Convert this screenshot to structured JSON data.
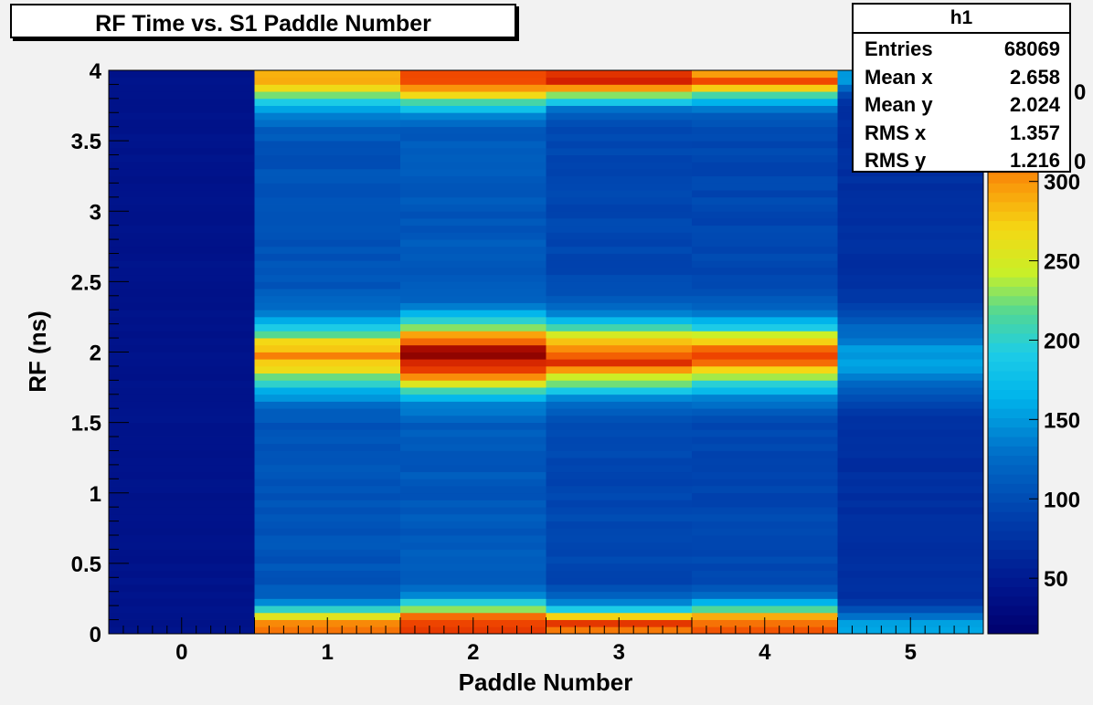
{
  "title": "RF Time vs. S1 Paddle Number",
  "stats": {
    "name": "h1",
    "rows": [
      {
        "label": "Entries",
        "value": "68069"
      },
      {
        "label": "Mean x",
        "value": "2.658"
      },
      {
        "label": "Mean y",
        "value": "2.024"
      },
      {
        "label": "RMS x",
        "value": "1.357"
      },
      {
        "label": "RMS y",
        "value": "1.216"
      }
    ]
  },
  "chart_data": {
    "type": "heatmap",
    "title": "RF Time vs. S1 Paddle Number",
    "xlabel": "Paddle Number",
    "ylabel": "RF (ns)",
    "x_categories": [
      "0",
      "1",
      "2",
      "3",
      "4",
      "5"
    ],
    "xlim": [
      -0.5,
      5.5
    ],
    "ylim": [
      0,
      4
    ],
    "y_ticks": [
      "0",
      "0.5",
      "1",
      "1.5",
      "2",
      "2.5",
      "3",
      "3.5",
      "4"
    ],
    "z_range": [
      15,
      370
    ],
    "z_ticks": [
      50,
      100,
      150,
      200,
      250,
      300
    ],
    "colorbar_visible_ticks": [
      "50",
      "100",
      "150",
      "200",
      "250",
      "300"
    ],
    "colorbar_partial_ticks": [
      "0",
      "0"
    ],
    "y_bin_width": 0.05,
    "profiles": {
      "0": {
        "base": 42,
        "peaks": []
      },
      "1": {
        "base": 105,
        "peaks": [
          {
            "y": 1.97,
            "height": 185,
            "width": 0.17
          },
          {
            "y": 0.05,
            "height": 210,
            "width": 0.1
          },
          {
            "y": 3.95,
            "height": 185,
            "width": 0.15
          }
        ]
      },
      "2": {
        "base": 110,
        "peaks": [
          {
            "y": 1.97,
            "height": 255,
            "width": 0.17
          },
          {
            "y": 0.05,
            "height": 230,
            "width": 0.12
          },
          {
            "y": 3.95,
            "height": 215,
            "width": 0.14
          }
        ]
      },
      "3": {
        "base": 95,
        "peaks": [
          {
            "y": 1.97,
            "height": 235,
            "width": 0.17
          },
          {
            "y": 0.05,
            "height": 230,
            "width": 0.1
          },
          {
            "y": 3.95,
            "height": 240,
            "width": 0.12
          }
        ]
      },
      "4": {
        "base": 95,
        "peaks": [
          {
            "y": 1.97,
            "height": 215,
            "width": 0.17
          },
          {
            "y": 0.05,
            "height": 220,
            "width": 0.12
          },
          {
            "y": 3.95,
            "height": 220,
            "width": 0.12
          }
        ]
      },
      "5": {
        "base": 72,
        "peaks": [
          {
            "y": 1.97,
            "height": 80,
            "width": 0.2
          },
          {
            "y": 0.05,
            "height": 85,
            "width": 0.08
          },
          {
            "y": 3.95,
            "height": 85,
            "width": 0.08
          }
        ]
      }
    }
  }
}
